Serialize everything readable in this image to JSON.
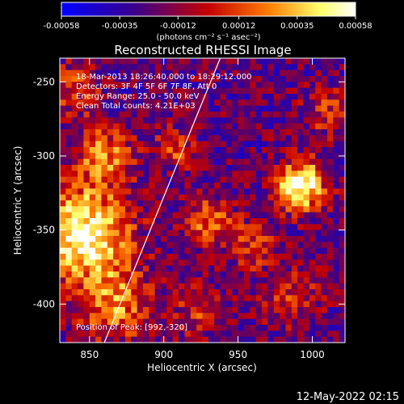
{
  "colorbar": {
    "tick_labels": [
      "-0.00058",
      "-0.00035",
      "-0.00012",
      "0.00012",
      "0.00035",
      "0.00058"
    ],
    "tick_values": [
      -0.00058,
      -0.00035,
      -0.00012,
      0.00012,
      0.00035,
      0.00058
    ],
    "range": [
      -0.00058,
      0.00058
    ],
    "units_label": "(photons cm⁻² s⁻¹ asec⁻²)",
    "colors": [
      "#0000ff",
      "#3a008a",
      "#c60000",
      "#ff7a00",
      "#ffff6a",
      "#ffffff"
    ]
  },
  "chart_data": {
    "type": "heatmap",
    "title": "Reconstructed RHESSI Image",
    "xlabel": "Heliocentric X (arcsec)",
    "ylabel": "Heliocentric Y (arcsec)",
    "xlim": [
      830,
      1022
    ],
    "ylim": [
      -426,
      -234
    ],
    "x_ticks": [
      850,
      900,
      950,
      1000
    ],
    "x_tick_labels": [
      "850",
      "900",
      "950",
      "1000"
    ],
    "y_ticks": [
      -250,
      -300,
      -350,
      -400
    ],
    "y_tick_labels": [
      "-250",
      "-300",
      "-350",
      "-400"
    ],
    "annotations": [
      "18-Mar-2013 18:26:40.000 to 18:29:12.000",
      "Detectors: 3F 4F 5F 6F 7F 8F, Att 0",
      "Energy Range: 25.0 - 50.0 keV",
      "Clean    Total counts: 4.21E+03"
    ],
    "peak_label": "Position of Peak:  [992,-320]",
    "peak": [
      992,
      -320
    ],
    "sources": [
      {
        "x": 992,
        "y": -320,
        "amp": 1.0,
        "sigma": 12
      },
      {
        "x": 845,
        "y": -352,
        "amp": 0.95,
        "sigma": 22
      },
      {
        "x": 860,
        "y": -300,
        "amp": 0.55,
        "sigma": 14
      },
      {
        "x": 868,
        "y": -400,
        "amp": 0.55,
        "sigma": 18
      },
      {
        "x": 838,
        "y": -255,
        "amp": 0.35,
        "sigma": 14
      },
      {
        "x": 930,
        "y": -345,
        "amp": 0.5,
        "sigma": 12
      },
      {
        "x": 908,
        "y": -295,
        "amp": 0.4,
        "sigma": 10
      },
      {
        "x": 1010,
        "y": -270,
        "amp": 0.35,
        "sigma": 12
      },
      {
        "x": 985,
        "y": -395,
        "amp": 0.35,
        "sigma": 14
      },
      {
        "x": 960,
        "y": -360,
        "amp": 0.35,
        "sigma": 12
      },
      {
        "x": 925,
        "y": -405,
        "amp": 0.35,
        "sigma": 12
      }
    ],
    "limb_line": [
      [
        860,
        -426
      ],
      [
        938,
        -234
      ]
    ]
  },
  "footer": {
    "timestamp": "12-May-2022 02:15"
  }
}
